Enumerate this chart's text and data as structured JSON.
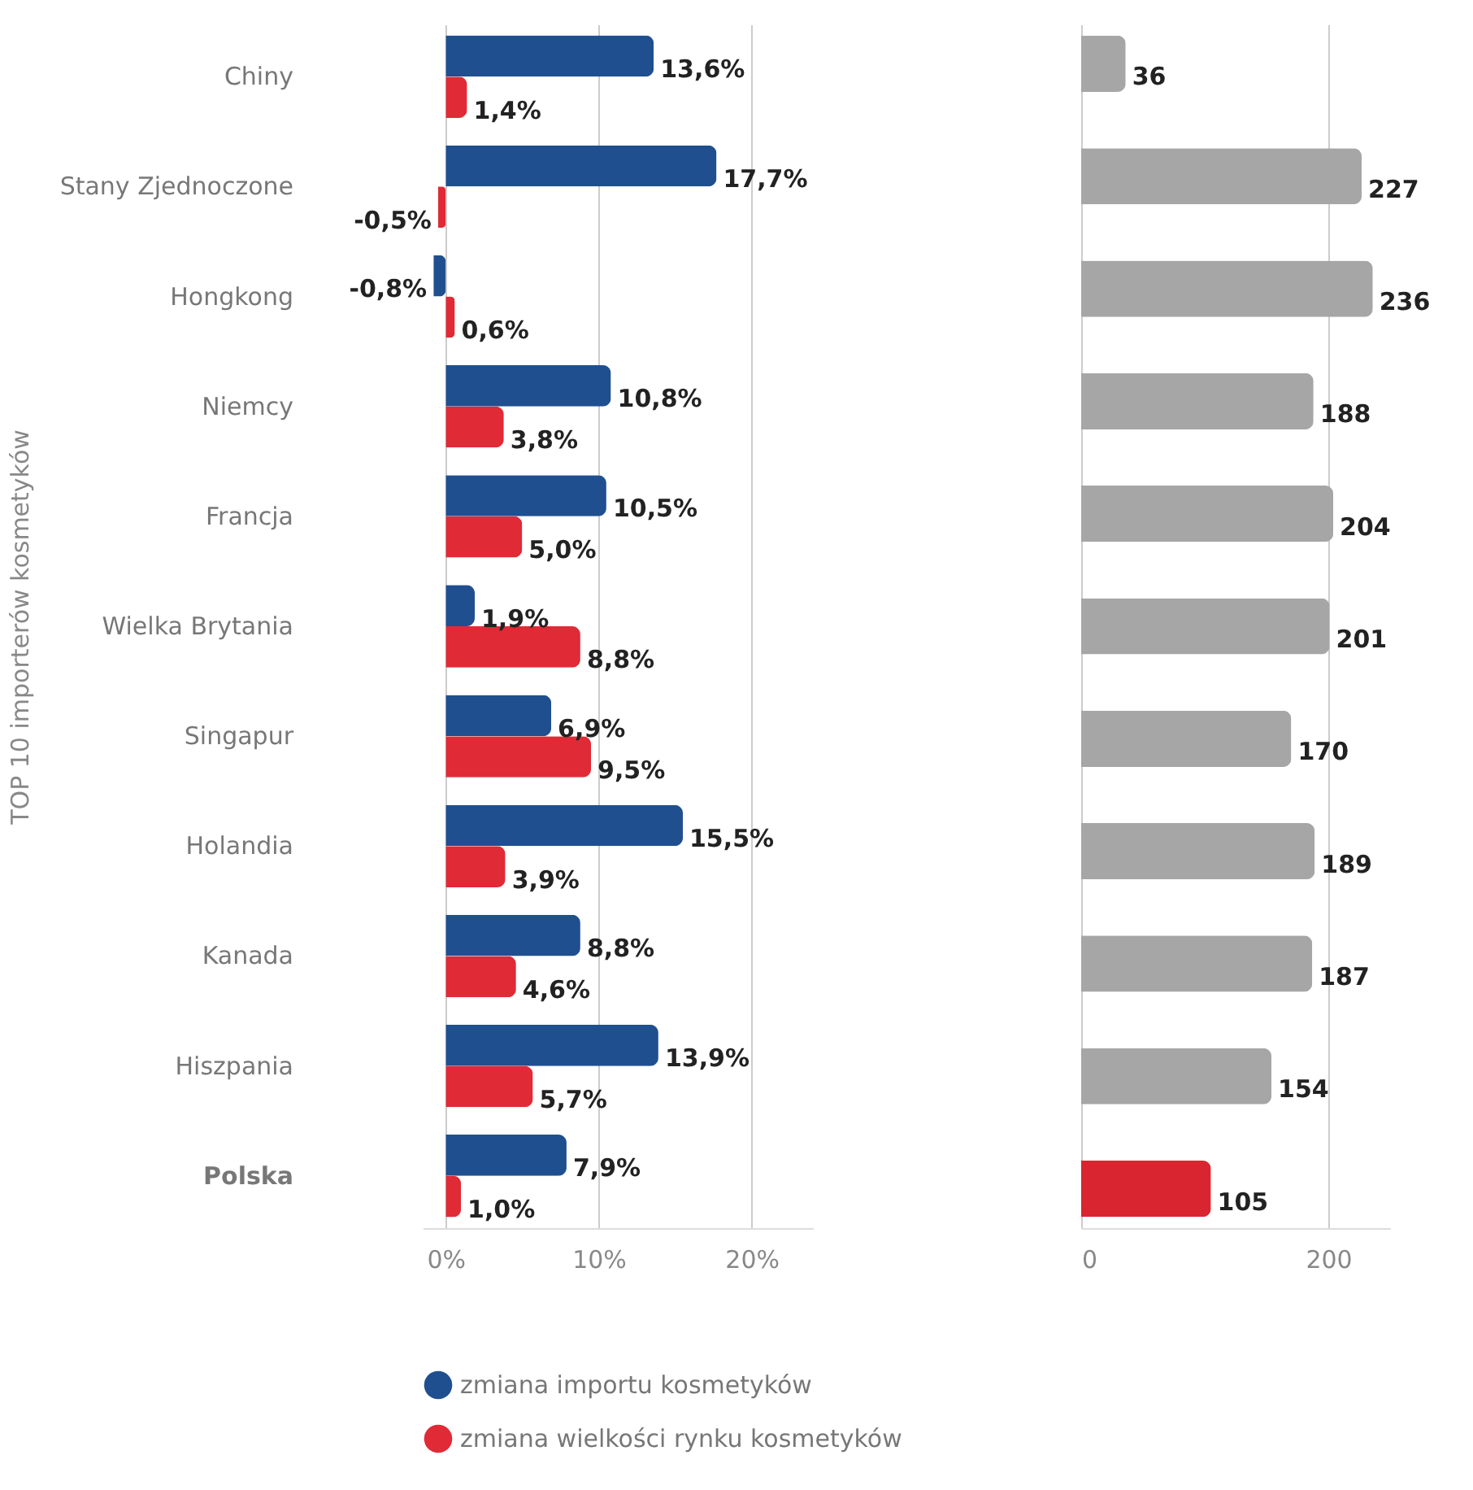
{
  "chart_data": [
    {
      "type": "bar",
      "orientation": "horizontal",
      "ylabel": "TOP 10 importerów kosmetyków",
      "categories": [
        "Chiny",
        "Stany Zjednoczone",
        "Hongkong",
        "Niemcy",
        "Francja",
        "Wielka Brytania",
        "Singapur",
        "Holandia",
        "Kanada",
        "Hiszpania",
        "Polska"
      ],
      "xlim": [
        -1.5,
        24
      ],
      "xticks": [
        {
          "value": 0,
          "label": "0%"
        },
        {
          "value": 10,
          "label": "10%"
        },
        {
          "value": 20,
          "label": "20%"
        }
      ],
      "grid": "x",
      "legend": "bottom",
      "series": [
        {
          "name": "zmiana importu kosmetyków",
          "color": "#1f4f8f",
          "values": [
            13.6,
            17.7,
            -0.8,
            10.8,
            10.5,
            1.9,
            6.9,
            15.5,
            8.8,
            13.9,
            7.9
          ],
          "value_labels": [
            "13,6%",
            "17,7%",
            "-0,8%",
            "10,8%",
            "10,5%",
            "1,9%",
            "6,9%",
            "15,5%",
            "8,8%",
            "13,9%",
            "7,9%"
          ]
        },
        {
          "name": "zmiana wielkości rynku kosmetyków",
          "color": "#e02a36",
          "values": [
            1.4,
            -0.5,
            0.6,
            3.8,
            5.0,
            8.8,
            9.5,
            3.9,
            4.6,
            5.7,
            1.0
          ],
          "value_labels": [
            "1,4%",
            "-0,5%",
            "0,6%",
            "3,8%",
            "5,0%",
            "8,8%",
            "9,5%",
            "3,9%",
            "4,6%",
            "5,7%",
            "1,0%"
          ]
        }
      ]
    },
    {
      "type": "bar",
      "orientation": "horizontal",
      "categories": [
        null,
        null,
        null,
        null,
        null,
        null,
        null,
        null,
        null,
        null,
        null
      ],
      "values": [
        36,
        227,
        236,
        188,
        204,
        201,
        170,
        189,
        187,
        154,
        105
      ],
      "colors": [
        "#a6a6a6",
        "#a6a6a6",
        "#a6a6a6",
        "#a6a6a6",
        "#a6a6a6",
        "#a6a6a6",
        "#a6a6a6",
        "#a6a6a6",
        "#a6a6a6",
        "#a6a6a6",
        "#d8252f"
      ],
      "xlim": [
        0,
        250
      ],
      "xticks": [
        0,
        200
      ],
      "grid": "x",
      "data_labels": true,
      "tick_labels": "x"
    }
  ]
}
